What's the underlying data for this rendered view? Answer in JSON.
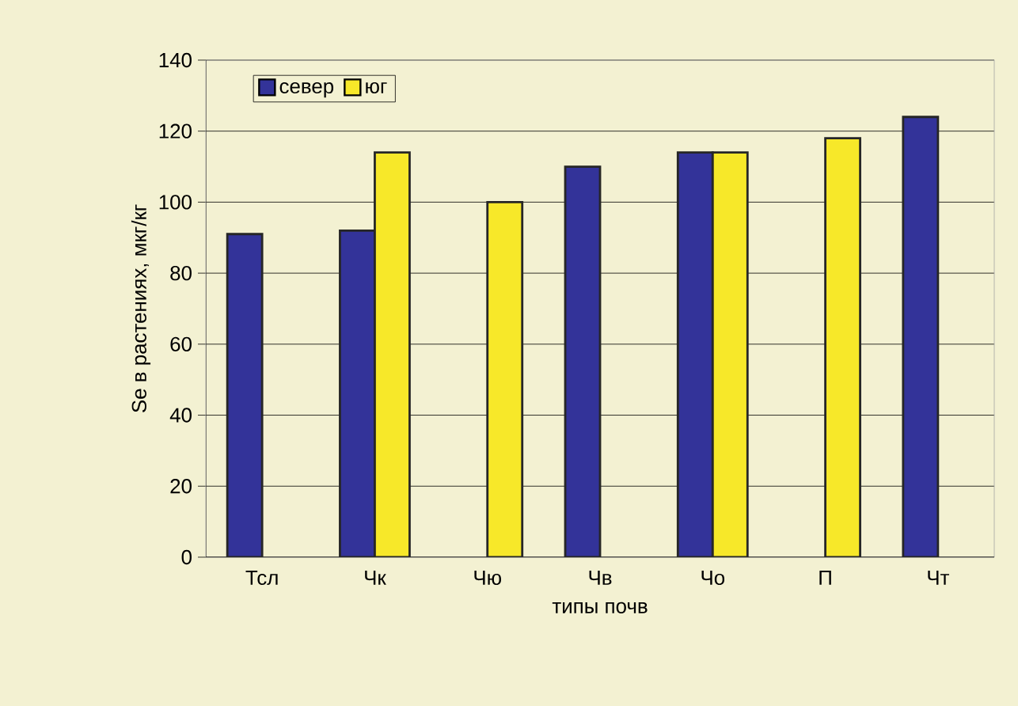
{
  "chart_data": {
    "type": "bar",
    "xlabel": "типы почв",
    "ylabel": "Se в растениях, мкг/кг",
    "categories": [
      "Тсл",
      "Чк",
      "Чю",
      "Чв",
      "Чо",
      "П",
      "Чт"
    ],
    "series": [
      {
        "name": "север",
        "color": "#333399",
        "values": [
          91,
          92,
          null,
          110,
          114,
          null,
          124
        ]
      },
      {
        "name": "юг",
        "color": "#f7e829",
        "values": [
          null,
          114,
          100,
          null,
          114,
          118,
          null
        ]
      }
    ],
    "ylim": [
      0,
      140
    ],
    "yticks": [
      0,
      20,
      40,
      60,
      80,
      100,
      120,
      140
    ],
    "grid": "y",
    "legend": "top left"
  }
}
